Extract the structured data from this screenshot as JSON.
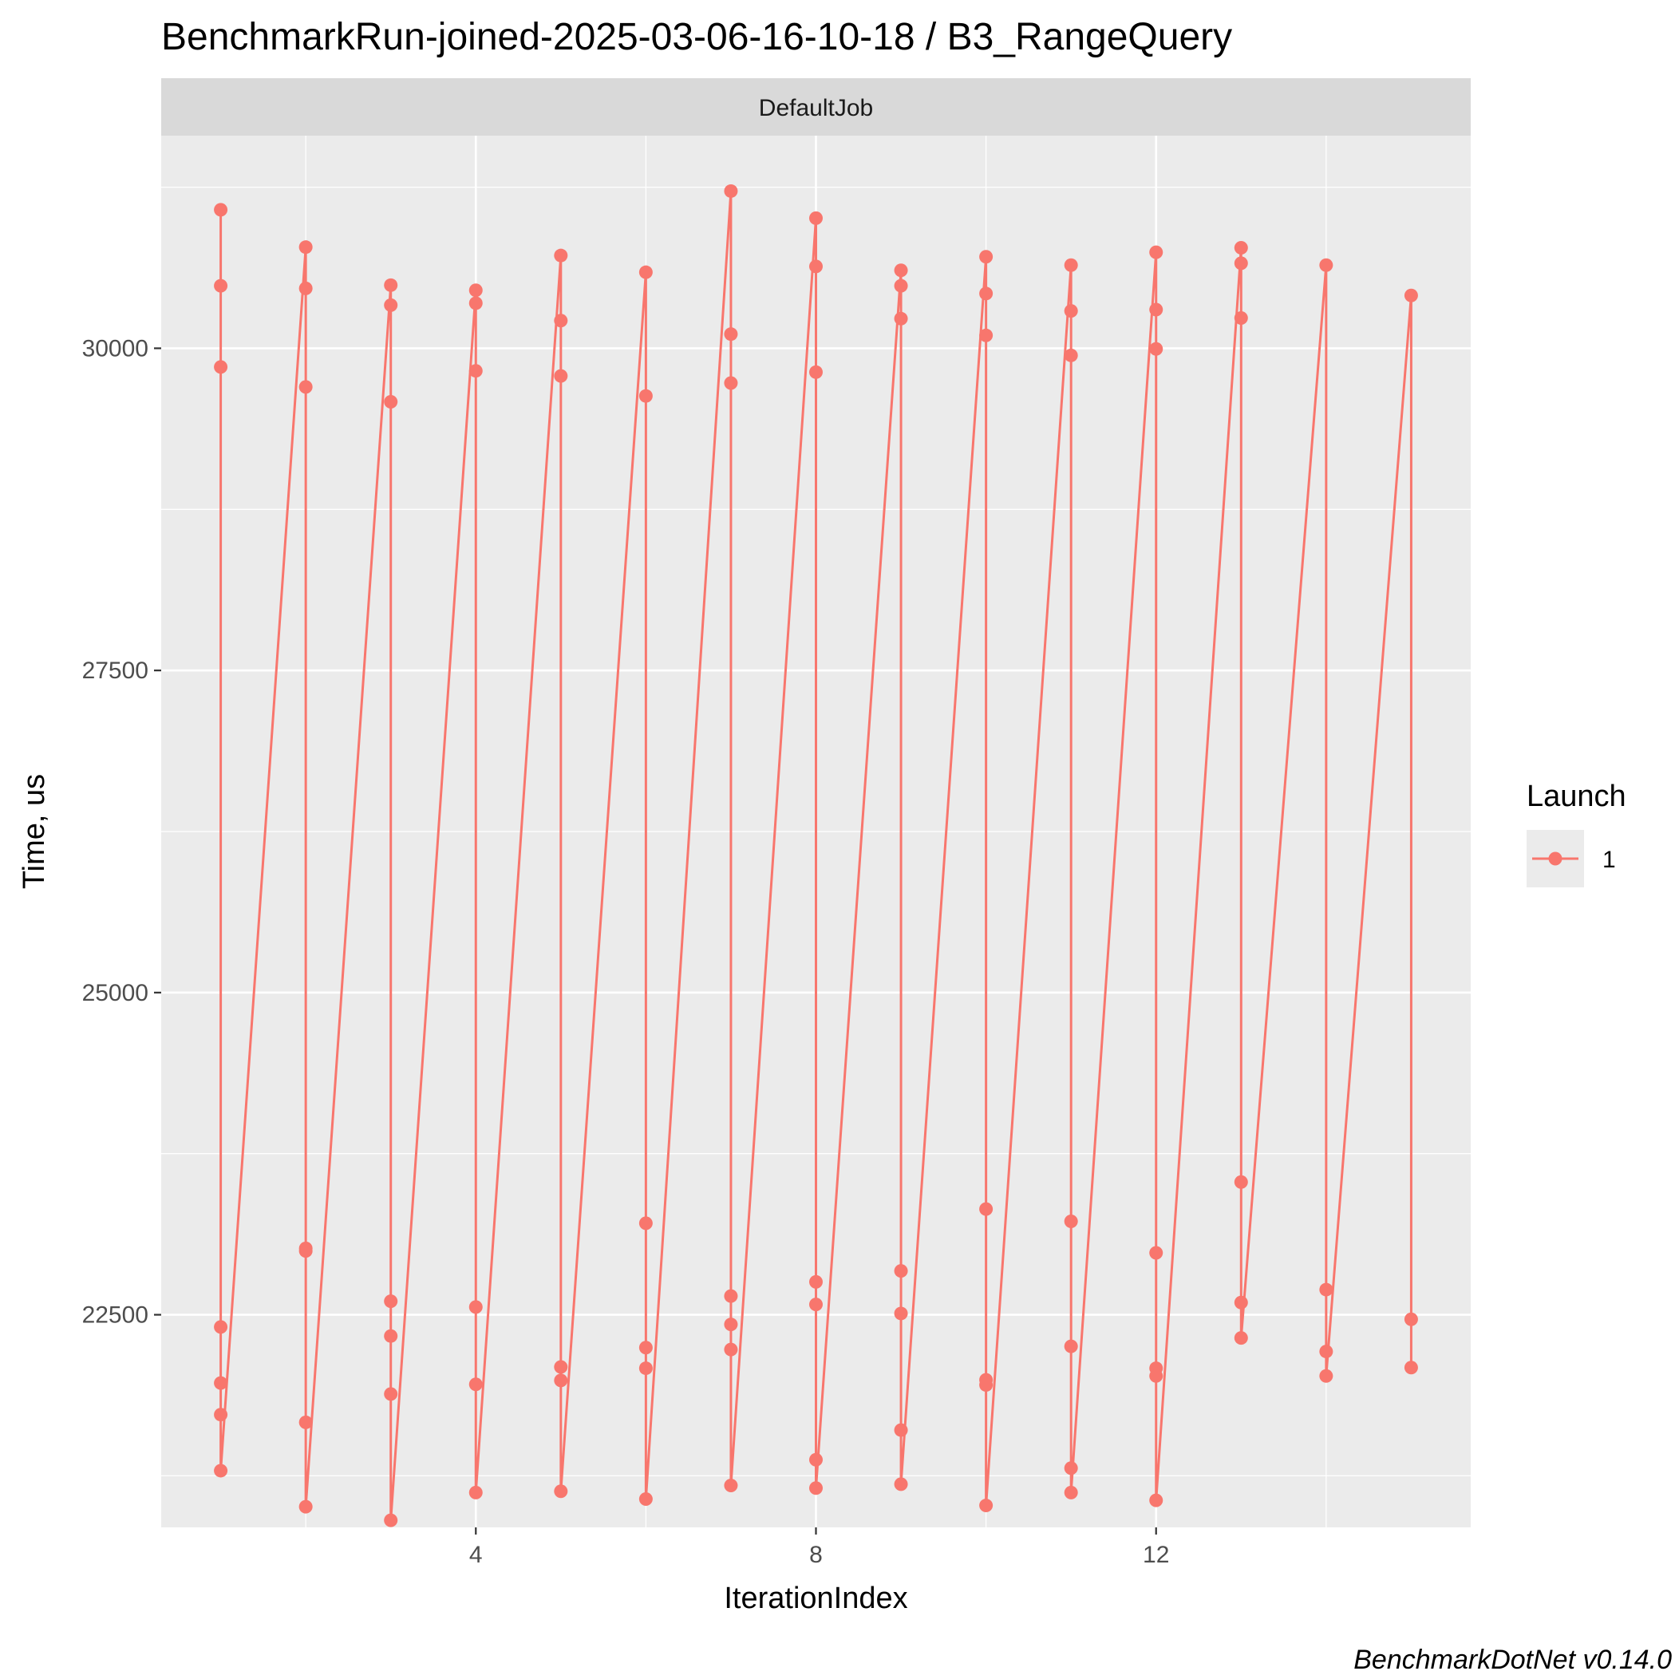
{
  "colors": {
    "series": "#F8766D",
    "panel_bg": "#EBEBEB",
    "strip_bg": "#D9D9D9",
    "grid": "#FFFFFF"
  },
  "chart_data": {
    "type": "line",
    "title": "BenchmarkRun-joined-2025-03-06-16-10-18 / B3_RangeQuery",
    "facet": "DefaultJob",
    "xlabel": "IterationIndex",
    "ylabel": "Time, us",
    "xlim": [
      0.3,
      15.7
    ],
    "ylim": [
      20850,
      31650
    ],
    "xticks": [
      4,
      8,
      12
    ],
    "yticks": [
      22500,
      25000,
      27500,
      30000
    ],
    "grid": true,
    "legend": {
      "title": "Launch",
      "entries": [
        "1"
      ],
      "position": "right"
    },
    "caption": "BenchmarkDotNet v0.14.0",
    "series": [
      {
        "name": "1",
        "points": [
          {
            "x": 1,
            "values": [
              31075,
              30485,
              29855,
              22405,
              21970,
              21725,
              21290
            ]
          },
          {
            "x": 2,
            "values": [
              30785,
              30465,
              29700,
              23015,
              22995,
              21665,
              21010
            ]
          },
          {
            "x": 3,
            "values": [
              30490,
              30335,
              29585,
              22605,
              22335,
              21885,
              20905
            ]
          },
          {
            "x": 4,
            "values": [
              30450,
              30350,
              29825,
              22560,
              21960,
              21120
            ]
          },
          {
            "x": 5,
            "values": [
              30720,
              30215,
              29785,
              22095,
              21990,
              21130
            ]
          },
          {
            "x": 6,
            "values": [
              30590,
              29630,
              23210,
              22245,
              22085,
              21070
            ]
          },
          {
            "x": 7,
            "values": [
              31220,
              30110,
              29730,
              22645,
              22425,
              22230,
              21175
            ]
          },
          {
            "x": 8,
            "values": [
              31010,
              30635,
              29815,
              22755,
              22580,
              21375,
              21155
            ]
          },
          {
            "x": 9,
            "values": [
              30605,
              30485,
              30230,
              22840,
              22510,
              21605,
              21185
            ]
          },
          {
            "x": 10,
            "values": [
              30710,
              30425,
              30100,
              23320,
              21995,
              21955,
              21020
            ]
          },
          {
            "x": 11,
            "values": [
              30645,
              30290,
              29945,
              23225,
              22255,
              21310,
              21120
            ]
          },
          {
            "x": 12,
            "values": [
              30745,
              30300,
              29995,
              22980,
              22085,
              22025,
              21060
            ]
          },
          {
            "x": 13,
            "values": [
              30780,
              30660,
              30235,
              23530,
              22595,
              22320
            ]
          },
          {
            "x": 14,
            "values": [
              30645,
              22695,
              22215,
              22025
            ]
          },
          {
            "x": 15,
            "values": [
              30410,
              22465,
              22090
            ]
          }
        ]
      }
    ]
  }
}
